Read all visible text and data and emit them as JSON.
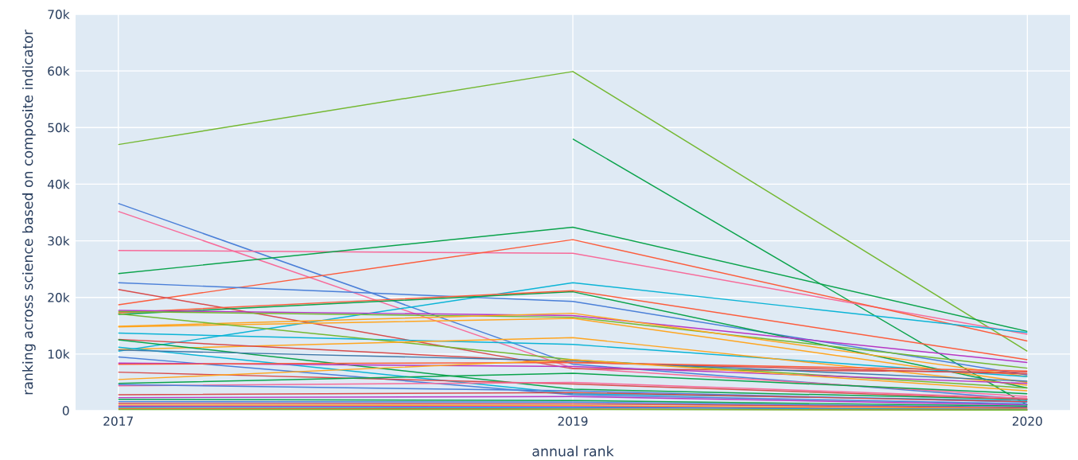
{
  "chart_data": {
    "type": "line",
    "xlabel": "annual rank",
    "ylabel": "ranking across science based on composite indicator",
    "categories": [
      "2017",
      "2019",
      "2020"
    ],
    "ylim": [
      0,
      70000
    ],
    "yticks": [
      {
        "value": 0,
        "label": "0"
      },
      {
        "value": 10000,
        "label": "10k"
      },
      {
        "value": 20000,
        "label": "20k"
      },
      {
        "value": 30000,
        "label": "30k"
      },
      {
        "value": 40000,
        "label": "40k"
      },
      {
        "value": 50000,
        "label": "50k"
      },
      {
        "value": 60000,
        "label": "60k"
      },
      {
        "value": 70000,
        "label": "70k"
      }
    ],
    "grid": true,
    "series": [
      {
        "color": "#74b831",
        "values": [
          47000,
          59900,
          10500
        ]
      },
      {
        "color": "#0aa34b",
        "values": [
          null,
          48000,
          1000
        ]
      },
      {
        "color": "#4a7fd8",
        "values": [
          36600,
          8200,
          2000
        ]
      },
      {
        "color": "#f76b9a",
        "values": [
          35200,
          7500,
          2500
        ]
      },
      {
        "color": "#f76b9a",
        "values": [
          28300,
          27800,
          13500
        ]
      },
      {
        "color": "#0aa34b",
        "values": [
          24200,
          32400,
          14000
        ]
      },
      {
        "color": "#fc5c3c",
        "values": [
          18700,
          30200,
          12300
        ]
      },
      {
        "color": "#4a7fd8",
        "values": [
          22600,
          19300,
          6300
        ]
      },
      {
        "color": "#0bb4d6",
        "values": [
          10500,
          22600,
          13800
        ]
      },
      {
        "color": "#d84c4c",
        "values": [
          21400,
          7400,
          6800
        ]
      },
      {
        "color": "#0aa34b",
        "values": [
          17000,
          21000,
          4000
        ]
      },
      {
        "color": "#fc5c3c",
        "values": [
          17300,
          21200,
          9000
        ]
      },
      {
        "color": "#b636c4",
        "values": [
          17700,
          16800,
          8500
        ]
      },
      {
        "color": "#74b831",
        "values": [
          17500,
          16500,
          7500
        ]
      },
      {
        "color": "#ffa51f",
        "values": [
          14800,
          16300,
          5000
        ]
      },
      {
        "color": "#ffa51f",
        "values": [
          14900,
          17200,
          6000
        ]
      },
      {
        "color": "#0bb4d6",
        "values": [
          13700,
          11700,
          6000
        ]
      },
      {
        "color": "#74b831",
        "values": [
          17100,
          9000,
          4000
        ]
      },
      {
        "color": "#ffa51f",
        "values": [
          10800,
          12900,
          4500
        ]
      },
      {
        "color": "#d84c4c",
        "values": [
          12600,
          8500,
          6500
        ]
      },
      {
        "color": "#0aa34b",
        "values": [
          12500,
          3800,
          2000
        ]
      },
      {
        "color": "#0bb4d6",
        "values": [
          11200,
          3000,
          1800
        ]
      },
      {
        "color": "#3f78a8",
        "values": [
          10700,
          8800,
          5200
        ]
      },
      {
        "color": "#4a7fd8",
        "values": [
          9500,
          2800,
          1200
        ]
      },
      {
        "color": "#b636c4",
        "values": [
          8400,
          7800,
          4800
        ]
      },
      {
        "color": "#fc5c3c",
        "values": [
          8200,
          8500,
          7000
        ]
      },
      {
        "color": "#d84c4c",
        "values": [
          6800,
          4700,
          2000
        ]
      },
      {
        "color": "#ffa51f",
        "values": [
          5500,
          9000,
          3500
        ]
      },
      {
        "color": "#0aa34b",
        "values": [
          4800,
          6600,
          3000
        ]
      },
      {
        "color": "#f76b9a",
        "values": [
          4400,
          5000,
          2200
        ]
      },
      {
        "color": "#4a7fd8",
        "values": [
          4600,
          3500,
          1500
        ]
      },
      {
        "color": "#d84c4c",
        "values": [
          2800,
          3200,
          1600
        ]
      },
      {
        "color": "#b636c4",
        "values": [
          2300,
          2500,
          1000
        ]
      },
      {
        "color": "#0aa34b",
        "values": [
          2000,
          1800,
          800
        ]
      },
      {
        "color": "#4a7fd8",
        "values": [
          1600,
          1500,
          600
        ]
      },
      {
        "color": "#d84c4c",
        "values": [
          1300,
          1200,
          500
        ]
      },
      {
        "color": "#ffa51f",
        "values": [
          1000,
          900,
          300
        ]
      },
      {
        "color": "#b636c4",
        "values": [
          800,
          700,
          200
        ]
      },
      {
        "color": "#0bb4d6",
        "values": [
          600,
          500,
          200
        ]
      },
      {
        "color": "#fc5c3c",
        "values": [
          400,
          300,
          100
        ]
      },
      {
        "color": "#74b831",
        "values": [
          200,
          200,
          100
        ]
      }
    ]
  }
}
